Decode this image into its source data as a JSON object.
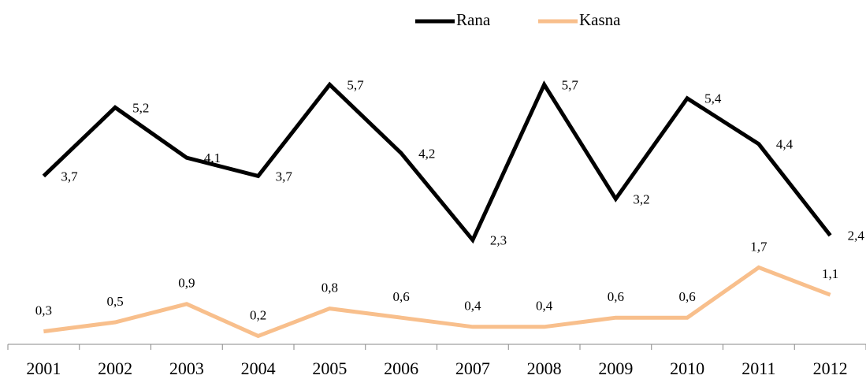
{
  "chart_data": {
    "type": "line",
    "categories": [
      "2001",
      "2002",
      "2003",
      "2004",
      "2005",
      "2006",
      "2007",
      "2008",
      "2009",
      "2010",
      "2011",
      "2012"
    ],
    "series": [
      {
        "name": "Rana",
        "color": "#000000",
        "values": [
          3.7,
          5.2,
          4.1,
          3.7,
          5.7,
          4.2,
          2.3,
          5.7,
          3.2,
          5.4,
          4.4,
          2.4
        ],
        "value_labels": [
          "3,7",
          "5,2",
          "4,1",
          "3,7",
          "5,7",
          "4,2",
          "2,3",
          "5,7",
          "3,2",
          "5,4",
          "4,4",
          "2,4"
        ]
      },
      {
        "name": "Kasna",
        "color": "#f8bf8c",
        "values": [
          0.3,
          0.5,
          0.9,
          0.2,
          0.8,
          0.6,
          0.4,
          0.4,
          0.6,
          0.6,
          1.7,
          1.1
        ],
        "value_labels": [
          "0,3",
          "0,5",
          "0,9",
          "0,2",
          "0,8",
          "0,6",
          "0,4",
          "0,4",
          "0,6",
          "0,6",
          "1,7",
          "1,1"
        ]
      }
    ],
    "ylim": [
      0,
      6
    ],
    "legend": "top"
  }
}
